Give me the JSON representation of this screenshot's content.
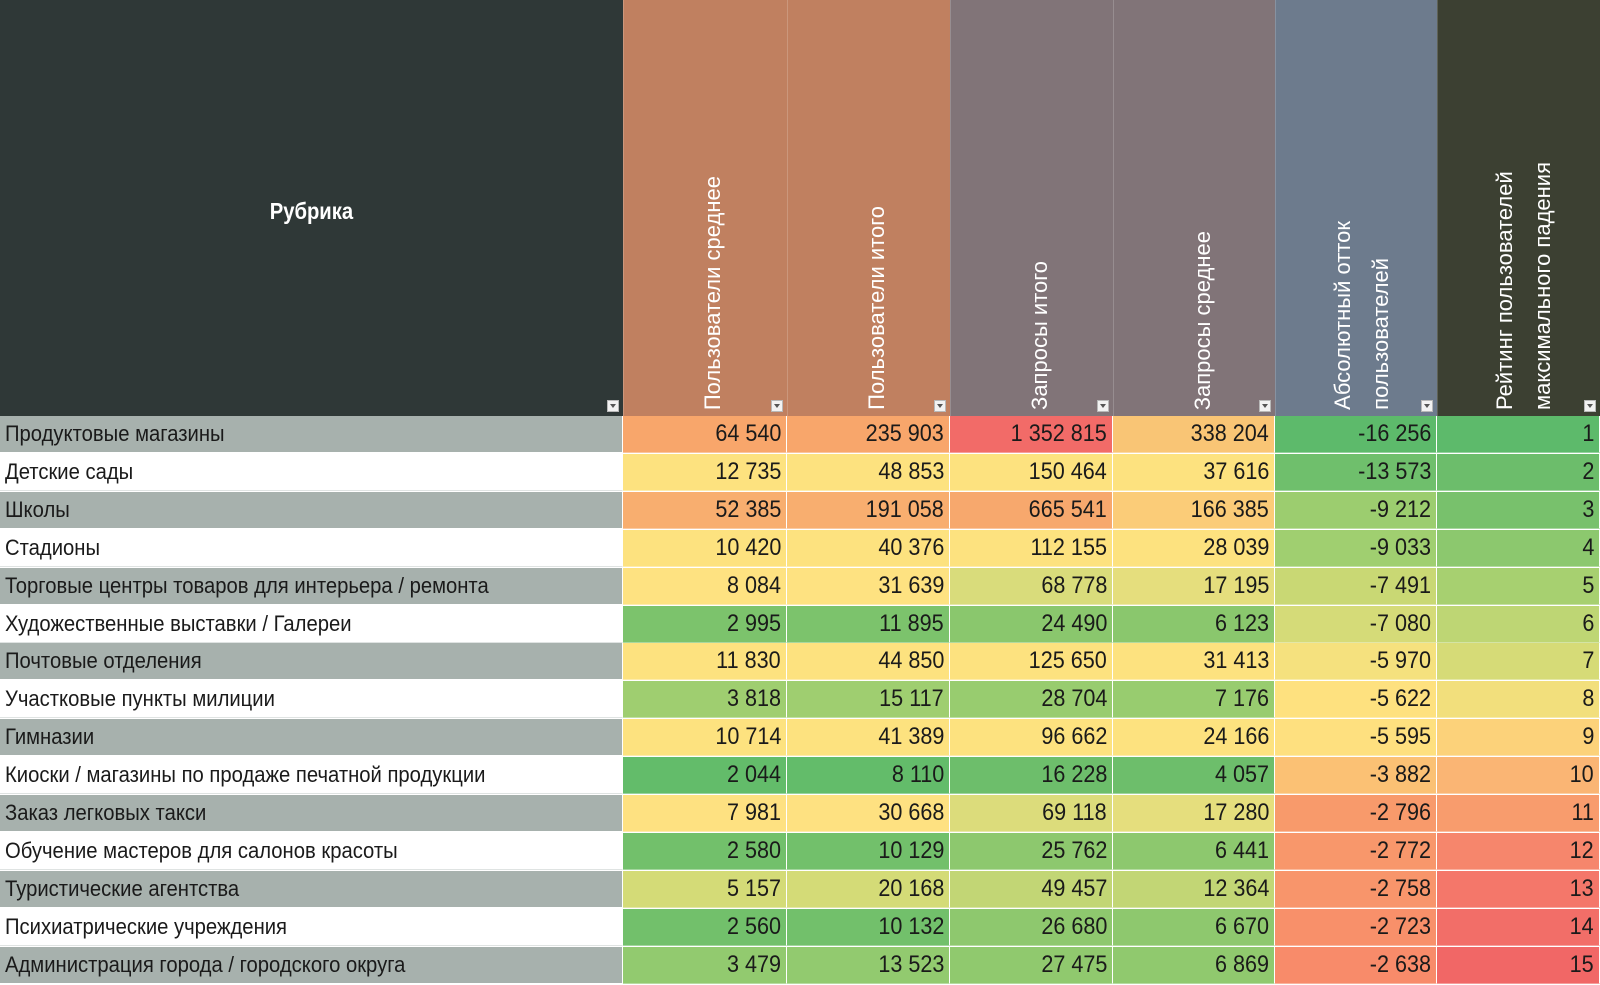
{
  "header": {
    "rubrika": "Рубрика",
    "columns": [
      {
        "label": "Пользователи среднее",
        "color": "#c08060"
      },
      {
        "label": "Пользователи итого",
        "color": "#c08060"
      },
      {
        "label": "Запросы итого",
        "color": "#817478"
      },
      {
        "label": "Запросы среднее",
        "color": "#817478"
      },
      {
        "label": "Абсолютный отток\nпользователей",
        "color": "#6d7b8d"
      },
      {
        "label": "Рейтинг пользователей\nмаксимального падения",
        "color": "#3c4032"
      }
    ]
  },
  "rows": [
    {
      "name": "Продуктовые магазины",
      "values": [
        "64 540",
        "235 903",
        "1 352 815",
        "338 204",
        "-16 256",
        "1"
      ],
      "colors": [
        "#f8a66b",
        "#f8a66b",
        "#f26b68",
        "#f9c575",
        "#5dba6b",
        "#5dba6b"
      ]
    },
    {
      "name": "Детские сады",
      "values": [
        "12 735",
        "48 853",
        "150 464",
        "37 616",
        "-13 573",
        "2"
      ],
      "colors": [
        "#fde27f",
        "#fde27f",
        "#fde27f",
        "#fde27f",
        "#6fbf6c",
        "#6cbd6b"
      ]
    },
    {
      "name": "Школы",
      "values": [
        "52 385",
        "191 058",
        "665 541",
        "166 385",
        "-9 212",
        "3"
      ],
      "colors": [
        "#f8ae6f",
        "#f8ae6f",
        "#f7a86d",
        "#fbcc78",
        "#9ccd6f",
        "#78c16c"
      ]
    },
    {
      "name": "Стадионы",
      "values": [
        "10 420",
        "40 376",
        "112 155",
        "28 039",
        "-9 033",
        "4"
      ],
      "colors": [
        "#fde27f",
        "#fde27f",
        "#fde27f",
        "#fde27f",
        "#a0cf70",
        "#8cc86e"
      ]
    },
    {
      "name": "Торговые центры товаров для интерьера / ремонта",
      "values": [
        "8 084",
        "31 639",
        "68 778",
        "17 195",
        "-7 491",
        "5"
      ],
      "colors": [
        "#fee281",
        "#fee281",
        "#d9dc7b",
        "#e5de7d",
        "#c9d874",
        "#a7d070"
      ]
    },
    {
      "name": "Художественные выставки / Галереи",
      "values": [
        "2 995",
        "11 895",
        "24 490",
        "6 123",
        "-7 080",
        "6"
      ],
      "colors": [
        "#7cc36c",
        "#7cc36c",
        "#8ac76d",
        "#8ac76d",
        "#d5db78",
        "#bed674"
      ]
    },
    {
      "name": "Почтовые отделения",
      "values": [
        "11 830",
        "44 850",
        "125 650",
        "31 413",
        "-5 970",
        "7"
      ],
      "colors": [
        "#fde27f",
        "#fde27f",
        "#fde27f",
        "#fde27f",
        "#f5e17e",
        "#d6db77"
      ]
    },
    {
      "name": "Участковые пункты милиции",
      "values": [
        "3 818",
        "15 117",
        "28 704",
        "7 176",
        "-5 622",
        "8"
      ],
      "colors": [
        "#9fce70",
        "#9fce70",
        "#98cc6f",
        "#98cc6f",
        "#fee17f",
        "#f2df7c"
      ]
    },
    {
      "name": "Гимназии",
      "values": [
        "10 714",
        "41 389",
        "96 662",
        "24 166",
        "-5 595",
        "9"
      ],
      "colors": [
        "#fde27f",
        "#fde27f",
        "#fde27f",
        "#fde27f",
        "#fee07f",
        "#fcd27a"
      ]
    },
    {
      "name": "Киоски / магазины по продаже печатной продукции",
      "values": [
        "2 044",
        "8 110",
        "16 228",
        "4 057",
        "-3 882",
        "10"
      ],
      "colors": [
        "#63bc6a",
        "#63bc6a",
        "#6dbe6b",
        "#6dbe6b",
        "#fbc174",
        "#fab574"
      ]
    },
    {
      "name": "Заказ легковых такси",
      "values": [
        "7 981",
        "30 668",
        "69 118",
        "17 280",
        "-2 796",
        "11"
      ],
      "colors": [
        "#fee181",
        "#fee181",
        "#dcdc7b",
        "#e5de7d",
        "#f89a6b",
        "#f89c6d"
      ]
    },
    {
      "name": "Обучение мастеров для салонов красоты",
      "values": [
        "2 580",
        "10 129",
        "25 762",
        "6 441",
        "-2 772",
        "12"
      ],
      "colors": [
        "#72c06b",
        "#72c06b",
        "#8dc86e",
        "#8dc86e",
        "#f8976b",
        "#f6866c"
      ]
    },
    {
      "name": "Туристические агентства",
      "values": [
        "5 157",
        "20 168",
        "49 457",
        "12 364",
        "-2 758",
        "13"
      ],
      "colors": [
        "#d4db77",
        "#d4db77",
        "#c2d675",
        "#c2d675",
        "#f8956b",
        "#f4776a"
      ]
    },
    {
      "name": "Психиатрические учреждения",
      "values": [
        "2 560",
        "10 132",
        "26 680",
        "6 670",
        "-2 723",
        "14"
      ],
      "colors": [
        "#72c06b",
        "#72c06b",
        "#8ec86e",
        "#8ec86e",
        "#f8906a",
        "#f26e68"
      ]
    },
    {
      "name": "Администрация города / городского округа",
      "values": [
        "3 479",
        "13 523",
        "27 475",
        "6 869",
        "-2 638",
        "15"
      ],
      "colors": [
        "#92ca6f",
        "#92ca6f",
        "#90c96e",
        "#90c96e",
        "#f88b6a",
        "#f16766"
      ]
    }
  ]
}
